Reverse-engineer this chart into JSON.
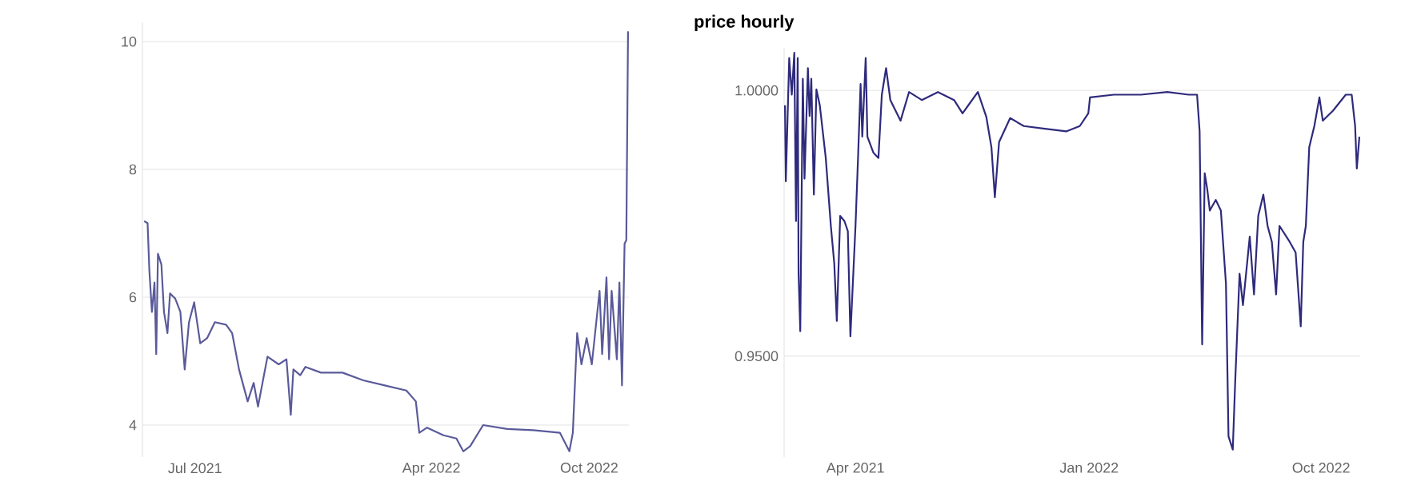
{
  "chart_data": [
    {
      "type": "line",
      "color": "#5a5a9a",
      "grid": "y",
      "xlim": [
        "2021-05-01",
        "2022-11-16"
      ],
      "ylim": [
        3.5,
        10.3
      ],
      "xticks": [
        {
          "value": "2021-07-01",
          "label": "Jul 2021"
        },
        {
          "value": "2022-04-01",
          "label": "Apr 2022"
        },
        {
          "value": "2022-10-01",
          "label": "Oct 2022"
        }
      ],
      "yticks": [
        4,
        6,
        8,
        10
      ],
      "x": [
        "2021-05-03",
        "2021-05-07",
        "2021-05-09",
        "2021-05-12",
        "2021-05-15",
        "2021-05-17",
        "2021-05-19",
        "2021-05-23",
        "2021-05-26",
        "2021-05-30",
        "2021-06-02",
        "2021-06-08",
        "2021-06-14",
        "2021-06-19",
        "2021-06-24",
        "2021-06-30",
        "2021-07-07",
        "2021-07-15",
        "2021-07-24",
        "2021-08-06",
        "2021-08-13",
        "2021-08-21",
        "2021-08-31",
        "2021-09-07",
        "2021-09-12",
        "2021-09-23",
        "2021-10-06",
        "2021-10-15",
        "2021-10-20",
        "2021-10-23",
        "2021-10-31",
        "2021-11-06",
        "2021-11-24",
        "2021-12-19",
        "2022-01-12",
        "2022-02-06",
        "2022-03-03",
        "2022-03-14",
        "2022-03-18",
        "2022-03-27",
        "2022-04-15",
        "2022-04-30",
        "2022-05-08",
        "2022-05-16",
        "2022-05-31",
        "2022-06-28",
        "2022-07-28",
        "2022-08-28",
        "2022-09-08",
        "2022-09-12",
        "2022-09-17",
        "2022-09-22",
        "2022-09-28",
        "2022-10-04",
        "2022-10-13",
        "2022-10-16",
        "2022-10-21",
        "2022-10-24",
        "2022-10-27",
        "2022-11-02",
        "2022-11-05",
        "2022-11-08",
        "2022-11-11",
        "2022-11-13",
        "2022-11-15"
      ],
      "values": [
        7.19,
        7.16,
        6.43,
        5.77,
        6.23,
        5.11,
        6.68,
        6.51,
        5.77,
        5.44,
        6.06,
        5.98,
        5.77,
        4.87,
        5.61,
        5.92,
        5.28,
        5.36,
        5.61,
        5.57,
        5.44,
        4.87,
        4.37,
        4.66,
        4.29,
        5.07,
        4.95,
        5.03,
        4.16,
        4.87,
        4.78,
        4.91,
        4.82,
        4.82,
        4.7,
        4.62,
        4.54,
        4.37,
        3.88,
        3.96,
        3.84,
        3.79,
        3.59,
        3.67,
        4.0,
        3.94,
        3.92,
        3.88,
        3.59,
        3.88,
        5.44,
        4.95,
        5.36,
        4.95,
        6.1,
        5.11,
        6.31,
        5.03,
        6.1,
        5.03,
        6.23,
        4.62,
        6.84,
        6.89,
        10.16
      ]
    },
    {
      "type": "line",
      "title": "price hourly",
      "color": "#2e2a7c",
      "grid": "y",
      "xlim": [
        "2021-01-07",
        "2022-11-16"
      ],
      "ylim": [
        0.931,
        1.008
      ],
      "xticks": [
        {
          "value": "2021-04-01",
          "label": "Apr 2021"
        },
        {
          "value": "2022-01-01",
          "label": "Jan 2022"
        },
        {
          "value": "2022-10-01",
          "label": "Oct 2022"
        }
      ],
      "yticks": [
        {
          "value": 0.95,
          "label": "0.9500"
        },
        {
          "value": 1,
          "label": "1.0000"
        }
      ],
      "x": [
        "2021-01-08",
        "2021-01-09",
        "2021-01-13",
        "2021-01-16",
        "2021-01-19",
        "2021-01-21",
        "2021-01-23",
        "2021-01-24",
        "2021-01-26",
        "2021-01-29",
        "2021-01-31",
        "2021-02-04",
        "2021-02-06",
        "2021-02-08",
        "2021-02-11",
        "2021-02-14",
        "2021-02-18",
        "2021-02-25",
        "2021-03-03",
        "2021-03-07",
        "2021-03-10",
        "2021-03-14",
        "2021-03-19",
        "2021-03-23",
        "2021-03-26",
        "2021-04-01",
        "2021-04-04",
        "2021-04-07",
        "2021-04-09",
        "2021-04-13",
        "2021-04-15",
        "2021-04-22",
        "2021-04-28",
        "2021-05-02",
        "2021-05-07",
        "2021-05-12",
        "2021-05-24",
        "2021-06-03",
        "2021-06-18",
        "2021-07-07",
        "2021-07-26",
        "2021-08-05",
        "2021-08-14",
        "2021-08-23",
        "2021-09-02",
        "2021-09-08",
        "2021-09-12",
        "2021-09-17",
        "2021-09-30",
        "2021-10-16",
        "2021-11-10",
        "2021-12-05",
        "2021-12-21",
        "2021-12-31",
        "2022-01-02",
        "2022-01-30",
        "2022-03-03",
        "2022-04-03",
        "2022-04-28",
        "2022-05-08",
        "2022-05-11",
        "2022-05-14",
        "2022-05-17",
        "2022-05-20",
        "2022-05-23",
        "2022-05-30",
        "2022-06-05",
        "2022-06-11",
        "2022-06-14",
        "2022-06-19",
        "2022-06-22",
        "2022-06-27",
        "2022-07-01",
        "2022-07-09",
        "2022-07-14",
        "2022-07-19",
        "2022-07-25",
        "2022-07-30",
        "2022-08-04",
        "2022-08-09",
        "2022-08-13",
        "2022-08-25",
        "2022-09-01",
        "2022-09-07",
        "2022-09-10",
        "2022-09-13",
        "2022-09-17",
        "2022-09-23",
        "2022-09-29",
        "2022-10-03",
        "2022-10-15",
        "2022-10-30",
        "2022-11-06",
        "2022-11-10",
        "2022-11-12",
        "2022-11-15"
      ],
      "values": [
        0.9972,
        0.9829,
        1.0061,
        0.9992,
        1.0071,
        0.9754,
        1.0061,
        0.9655,
        0.9547,
        1.0022,
        0.9834,
        1.0042,
        0.9952,
        1.0022,
        0.9804,
        1.0002,
        0.9972,
        0.9873,
        0.9745,
        0.9675,
        0.9566,
        0.9764,
        0.9754,
        0.9735,
        0.9537,
        0.9745,
        0.9873,
        1.0012,
        0.9913,
        1.0061,
        0.9913,
        0.9883,
        0.9873,
        0.9992,
        1.0042,
        0.9982,
        0.9943,
        0.9997,
        0.9982,
        0.9997,
        0.9982,
        0.9957,
        0.9977,
        0.9997,
        0.995,
        0.9893,
        0.9799,
        0.9903,
        0.9948,
        0.9933,
        0.9928,
        0.9923,
        0.9933,
        0.9957,
        0.9987,
        0.9992,
        0.9992,
        0.9997,
        0.9992,
        0.9992,
        0.9923,
        0.9522,
        0.9844,
        0.9814,
        0.9774,
        0.9794,
        0.9774,
        0.9636,
        0.9349,
        0.9324,
        0.9457,
        0.9655,
        0.9596,
        0.9725,
        0.9616,
        0.9764,
        0.9804,
        0.9745,
        0.9715,
        0.9616,
        0.9745,
        0.9715,
        0.9695,
        0.9556,
        0.9715,
        0.9745,
        0.9893,
        0.9933,
        0.9987,
        0.9943,
        0.9962,
        0.9992,
        0.9992,
        0.9933,
        0.9853,
        0.9913
      ]
    }
  ]
}
